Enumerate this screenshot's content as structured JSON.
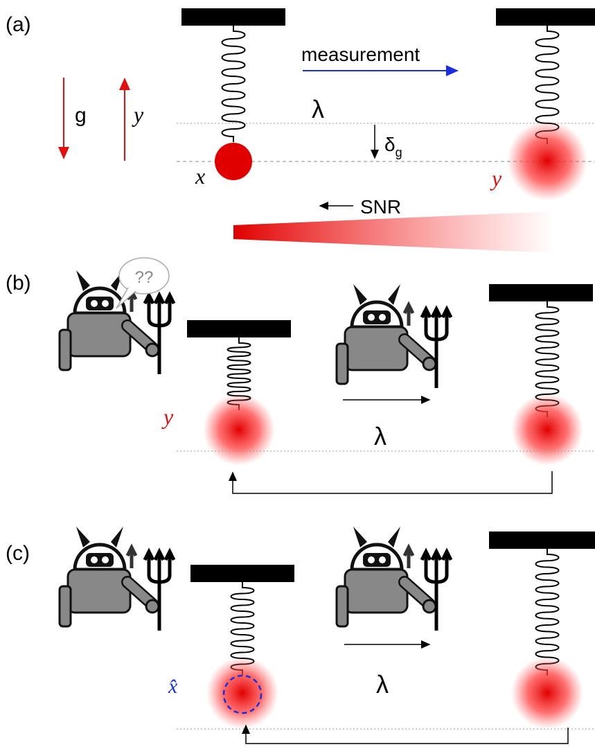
{
  "panels": [
    {
      "label": "(a)",
      "measurement": "measurement",
      "gravity": "g",
      "y_axis": "y",
      "lambda": "λ",
      "delta": "δ",
      "delta_sub": "g",
      "x": "x",
      "y": "y",
      "snr": "SNR"
    },
    {
      "label": "(b)",
      "thought": "??",
      "y": "y",
      "lambda": "λ"
    },
    {
      "label": "(c)",
      "x_hat": "x̂",
      "lambda": "λ"
    }
  ]
}
